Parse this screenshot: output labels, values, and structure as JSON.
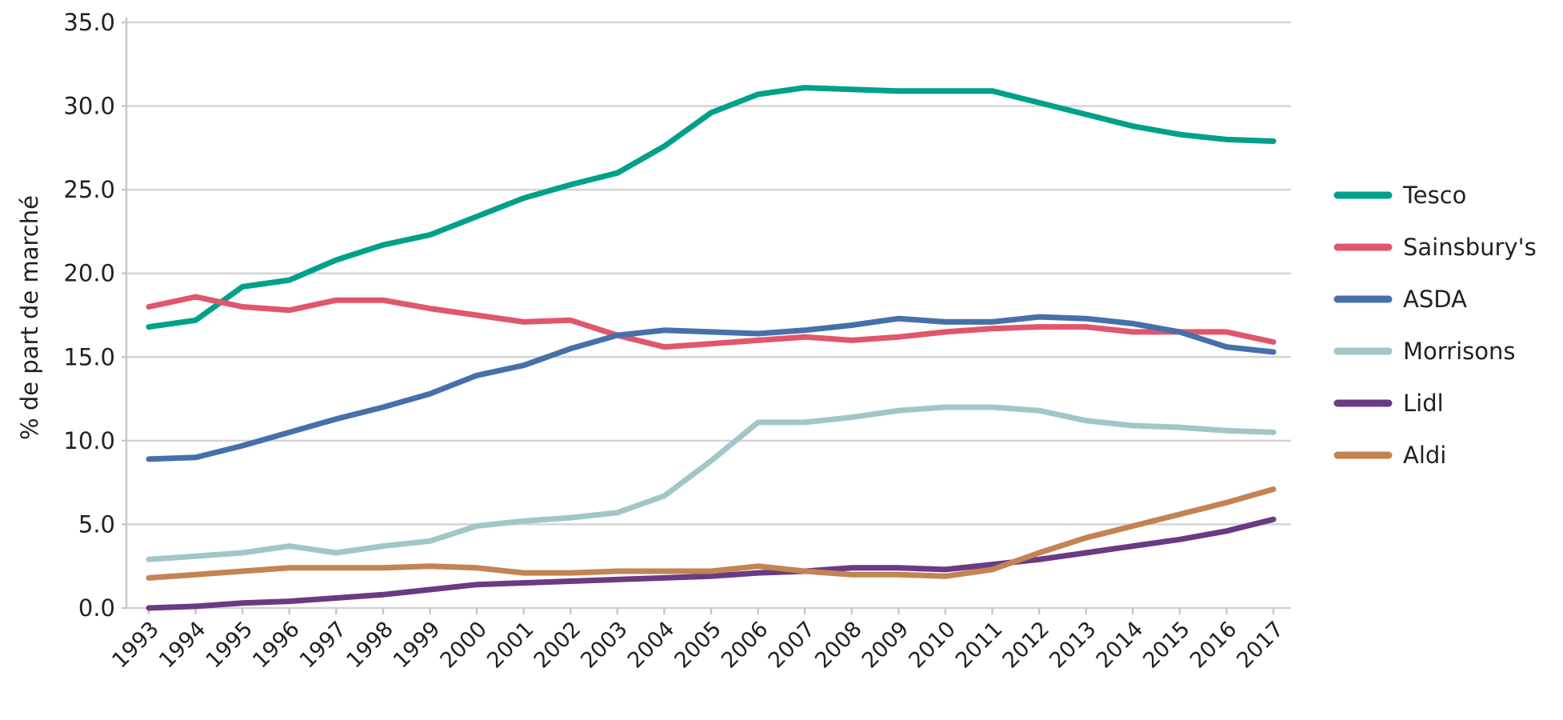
{
  "chart_data": {
    "type": "line",
    "title": "",
    "xlabel": "",
    "ylabel": "% de part de marché",
    "ylim": [
      0,
      35
    ],
    "yticks": [
      "0.0",
      "5.0",
      "10.0",
      "15.0",
      "20.0",
      "25.0",
      "30.0",
      "35.0"
    ],
    "grid": "horizontal",
    "legend_position": "right",
    "x": [
      1993,
      1994,
      1995,
      1996,
      1997,
      1998,
      1999,
      2000,
      2001,
      2002,
      2003,
      2004,
      2005,
      2006,
      2007,
      2008,
      2009,
      2010,
      2011,
      2012,
      2013,
      2014,
      2015,
      2016,
      2017
    ],
    "x_labels": [
      "1993",
      "1994",
      "1995",
      "1996",
      "1997",
      "1998",
      "1999",
      "2000",
      "2001",
      "2002",
      "2003",
      "2004",
      "2005",
      "2006",
      "2007",
      "2008",
      "2009",
      "2010",
      "2011",
      "2012",
      "2013",
      "2014",
      "2015",
      "2016",
      "2017"
    ],
    "series": [
      {
        "name": "Tesco",
        "color": "#00a08a",
        "values": [
          16.8,
          17.2,
          19.2,
          19.6,
          20.8,
          21.7,
          22.3,
          23.4,
          24.5,
          25.3,
          26.0,
          27.6,
          29.6,
          30.7,
          31.1,
          31.0,
          30.9,
          30.9,
          30.9,
          30.2,
          29.5,
          28.8,
          28.3,
          28.0,
          27.9
        ]
      },
      {
        "name": "Sainsbury's",
        "color": "#e0566c",
        "values": [
          18.0,
          18.6,
          18.0,
          17.8,
          18.4,
          18.4,
          17.9,
          17.5,
          17.1,
          17.2,
          16.3,
          15.6,
          15.8,
          16.0,
          16.2,
          16.0,
          16.2,
          16.5,
          16.7,
          16.8,
          16.8,
          16.5,
          16.5,
          16.5,
          15.9
        ]
      },
      {
        "name": "ASDA",
        "color": "#4770aa",
        "values": [
          8.9,
          9.0,
          9.7,
          10.5,
          11.3,
          12.0,
          12.8,
          13.9,
          14.5,
          15.5,
          16.3,
          16.6,
          16.5,
          16.4,
          16.6,
          16.9,
          17.3,
          17.1,
          17.1,
          17.4,
          17.3,
          17.0,
          16.5,
          15.6,
          15.3
        ]
      },
      {
        "name": "Morrisons",
        "color": "#a2c6c8",
        "values": [
          2.9,
          3.1,
          3.3,
          3.7,
          3.3,
          3.7,
          4.0,
          4.9,
          5.2,
          5.4,
          5.7,
          6.7,
          8.8,
          11.1,
          11.1,
          11.4,
          11.8,
          12.0,
          12.0,
          11.8,
          11.2,
          10.9,
          10.8,
          10.6,
          10.5
        ]
      },
      {
        "name": "Lidl",
        "color": "#6a3a84",
        "values": [
          0.0,
          0.1,
          0.3,
          0.4,
          0.6,
          0.8,
          1.1,
          1.4,
          1.5,
          1.6,
          1.7,
          1.8,
          1.9,
          2.1,
          2.2,
          2.4,
          2.4,
          2.3,
          2.6,
          2.9,
          3.3,
          3.7,
          4.1,
          4.6,
          5.3
        ]
      },
      {
        "name": "Aldi",
        "color": "#c38352",
        "values": [
          1.8,
          2.0,
          2.2,
          2.4,
          2.4,
          2.4,
          2.5,
          2.4,
          2.1,
          2.1,
          2.2,
          2.2,
          2.2,
          2.5,
          2.2,
          2.0,
          2.0,
          1.9,
          2.3,
          3.3,
          4.2,
          4.9,
          5.6,
          6.3,
          7.1
        ]
      }
    ]
  }
}
